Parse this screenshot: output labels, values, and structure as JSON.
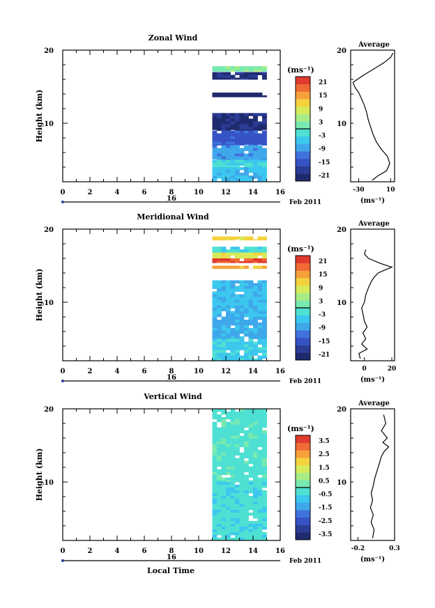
{
  "colors": {
    "scale": [
      "#1f2a6e",
      "#2b3c96",
      "#3553c4",
      "#3f72dc",
      "#3fa8ea",
      "#3cc7ee",
      "#4ee0d2",
      "#78eab0",
      "#a8ec86",
      "#d6ea5a",
      "#f4d23e",
      "#f6a13a",
      "#f06a34",
      "#e03a2e"
    ]
  },
  "shared": {
    "x_ticks": [
      "0",
      "2",
      "4",
      "6",
      "8",
      "10",
      "12",
      "14",
      "16"
    ],
    "y_ticks": [
      "20",
      "10"
    ],
    "ylabel": "Height (km)",
    "date_day": "16",
    "date_label": "Feb 2011",
    "xlabel": "Local Time",
    "unit": "(ms⁻¹)"
  },
  "chart_data": [
    {
      "type": "heatmap",
      "title": "Zonal Wind",
      "xlim": [
        0,
        16
      ],
      "ylim": [
        2,
        20
      ],
      "data_x_range": [
        11,
        15
      ],
      "colorbar_ticks": [
        "21",
        "15",
        "9",
        "3",
        "-3",
        "-9",
        "-15",
        "-21"
      ],
      "colorbar_range": [
        -24,
        24
      ],
      "profile": {
        "title": "Average",
        "xlim": [
          -40,
          15
        ],
        "x_ticks": [
          -30,
          10
        ],
        "x_tick_labels": [
          "-30",
          "10"
        ],
        "unit": "(ms⁻¹)",
        "points": [
          [
            -13,
            2.2
          ],
          [
            -6,
            2.8
          ],
          [
            5,
            3.5
          ],
          [
            9,
            4.5
          ],
          [
            6,
            5.5
          ],
          [
            -2,
            6.5
          ],
          [
            -8,
            7.5
          ],
          [
            -12,
            8.5
          ],
          [
            -15,
            9.5
          ],
          [
            -18,
            10.5
          ],
          [
            -20,
            11.5
          ],
          [
            -23,
            12.5
          ],
          [
            -27,
            13.5
          ],
          [
            -30,
            14.2
          ],
          [
            -35,
            15.0
          ],
          [
            -37,
            15.6
          ],
          [
            -25,
            16.5
          ],
          [
            -10,
            17.5
          ],
          [
            2,
            18.3
          ],
          [
            10,
            19.0
          ],
          [
            13,
            19.6
          ]
        ]
      },
      "regions": [
        {
          "y": [
            17.1,
            17.8
          ],
          "v": 3
        },
        {
          "y": [
            16.0,
            17.0
          ],
          "v": -21
        },
        {
          "y": [
            14.2,
            16.0
          ],
          "v": null
        },
        {
          "y": [
            13.6,
            14.2
          ],
          "v": -23
        },
        {
          "y": [
            11.4,
            13.6
          ],
          "v": null
        },
        {
          "y": [
            9.0,
            11.4
          ],
          "v": -21
        },
        {
          "y": [
            7.0,
            9.0
          ],
          "v": -15
        },
        {
          "y": [
            5.0,
            7.0
          ],
          "v": -9
        },
        {
          "y": [
            4.0,
            5.0
          ],
          "v": -3
        },
        {
          "y": [
            2.0,
            4.0
          ],
          "v": -6
        }
      ]
    },
    {
      "type": "heatmap",
      "title": "Meridional Wind",
      "xlim": [
        0,
        16
      ],
      "ylim": [
        2,
        20
      ],
      "data_x_range": [
        11,
        15
      ],
      "colorbar_ticks": [
        "21",
        "15",
        "9",
        "3",
        "-3",
        "-9",
        "-15",
        "-21"
      ],
      "colorbar_range": [
        -24,
        24
      ],
      "profile": {
        "title": "Average",
        "xlim": [
          -10,
          22
        ],
        "x_ticks": [
          0,
          20
        ],
        "x_tick_labels": [
          "0",
          "20"
        ],
        "unit": "(ms⁻¹)",
        "points": [
          [
            -3,
            2.3
          ],
          [
            -4,
            3.0
          ],
          [
            2,
            3.6
          ],
          [
            -2,
            4.3
          ],
          [
            1,
            5.0
          ],
          [
            -1,
            5.8
          ],
          [
            2,
            6.6
          ],
          [
            0,
            7.4
          ],
          [
            -1,
            8.4
          ],
          [
            -2,
            9.2
          ],
          [
            0,
            10.0
          ],
          [
            1,
            11.0
          ],
          [
            3,
            12.0
          ],
          [
            5,
            12.8
          ],
          [
            7,
            13.4
          ],
          [
            10,
            14.0
          ],
          [
            16,
            14.5
          ],
          [
            20,
            14.8
          ],
          [
            12,
            15.3
          ],
          [
            3,
            16.0
          ],
          [
            0,
            16.6
          ],
          [
            1,
            17.2
          ]
        ]
      },
      "regions": [
        {
          "y": [
            18.5,
            19.0
          ],
          "v": 12
        },
        {
          "y": [
            16.8,
            17.6
          ],
          "v": -3
        },
        {
          "y": [
            16.0,
            16.8
          ],
          "v": 9
        },
        {
          "y": [
            15.4,
            16.0
          ],
          "v": 21
        },
        {
          "y": [
            14.6,
            15.0
          ],
          "v": 15
        },
        {
          "y": [
            13.0,
            14.6
          ],
          "v": null
        },
        {
          "y": [
            8.0,
            13.0
          ],
          "v": -6
        },
        {
          "y": [
            5.0,
            8.0
          ],
          "v": -8
        },
        {
          "y": [
            2.0,
            5.0
          ],
          "v": -4
        }
      ]
    },
    {
      "type": "heatmap",
      "title": "Vertical Wind",
      "xlim": [
        0,
        16
      ],
      "ylim": [
        2,
        20
      ],
      "data_x_range": [
        11,
        15
      ],
      "colorbar_ticks": [
        "3.5",
        "2.5",
        "1.5",
        "0.5",
        "-0.5",
        "-1.5",
        "-2.5",
        "-3.5"
      ],
      "colorbar_range": [
        -4,
        4
      ],
      "profile": {
        "title": "Average",
        "xlim": [
          -0.3,
          0.3
        ],
        "x_ticks": [
          -0.2,
          0.3
        ],
        "x_tick_labels": [
          "-0.2",
          "0.3"
        ],
        "unit": "(ms⁻¹)",
        "points": [
          [
            0.0,
            2.3
          ],
          [
            0.02,
            3.5
          ],
          [
            -0.02,
            4.5
          ],
          [
            0.01,
            5.5
          ],
          [
            -0.03,
            6.5
          ],
          [
            0.0,
            7.5
          ],
          [
            -0.02,
            8.5
          ],
          [
            0.01,
            9.5
          ],
          [
            0.03,
            10.5
          ],
          [
            0.06,
            11.5
          ],
          [
            0.09,
            12.5
          ],
          [
            0.12,
            13.5
          ],
          [
            0.16,
            14.2
          ],
          [
            0.22,
            14.8
          ],
          [
            0.14,
            15.4
          ],
          [
            0.2,
            16.0
          ],
          [
            0.12,
            17.0
          ],
          [
            0.18,
            18.0
          ],
          [
            0.15,
            19.2
          ]
        ]
      },
      "regions": [
        {
          "y": [
            18.6,
            20.0
          ],
          "v": -0.3
        },
        {
          "y": [
            10.0,
            18.6
          ],
          "v": -0.2
        },
        {
          "y": [
            2.0,
            10.0
          ],
          "v": -0.4
        }
      ]
    }
  ]
}
